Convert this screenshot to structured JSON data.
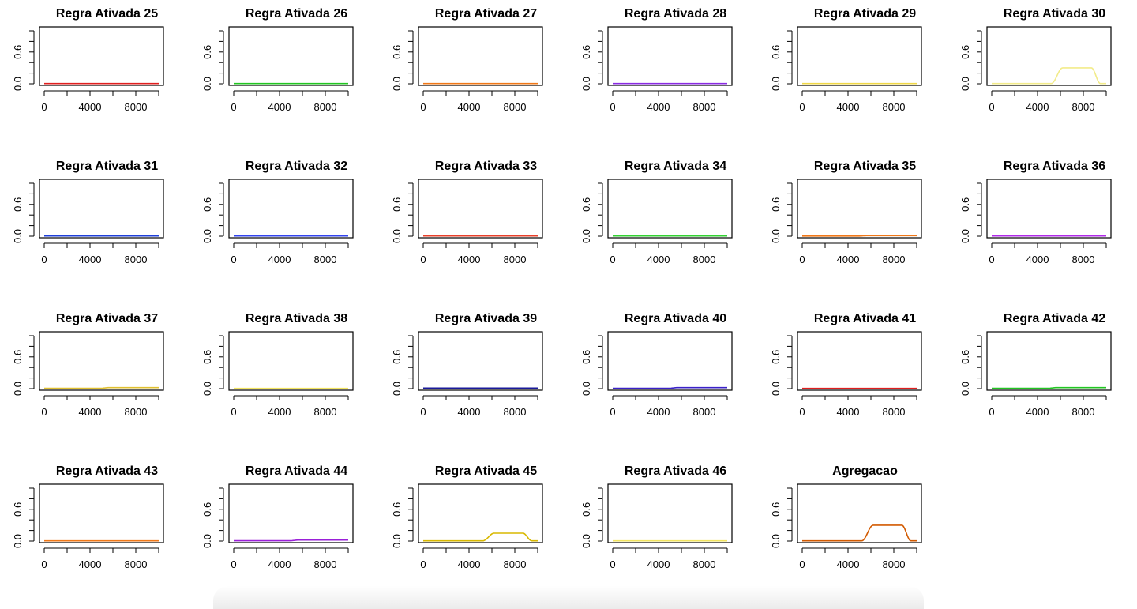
{
  "chart_data": [
    {
      "type": "line",
      "title": "Regra Ativada 25",
      "color": "#e01f1f",
      "profile": "flat",
      "level": 0.005,
      "xlim": [
        0,
        10000
      ],
      "ylim": [
        0,
        1
      ],
      "xticks": [
        "0",
        "4000",
        "8000"
      ],
      "yticks": [
        "0.0",
        "0.6"
      ]
    },
    {
      "type": "line",
      "title": "Regra Ativada 26",
      "color": "#22c522",
      "profile": "flat",
      "level": 0.005,
      "xlim": [
        0,
        10000
      ],
      "ylim": [
        0,
        1
      ],
      "xticks": [
        "0",
        "4000",
        "8000"
      ],
      "yticks": [
        "0.0",
        "0.6"
      ]
    },
    {
      "type": "line",
      "title": "Regra Ativada 27",
      "color": "#f07818",
      "profile": "flat",
      "level": 0.005,
      "xlim": [
        0,
        10000
      ],
      "ylim": [
        0,
        1
      ],
      "xticks": [
        "0",
        "4000",
        "8000"
      ],
      "yticks": [
        "0.0",
        "0.6"
      ]
    },
    {
      "type": "line",
      "title": "Regra Ativada 28",
      "color": "#8a2be2",
      "profile": "flat",
      "level": 0.005,
      "xlim": [
        0,
        10000
      ],
      "ylim": [
        0,
        1
      ],
      "xticks": [
        "0",
        "4000",
        "8000"
      ],
      "yticks": [
        "0.0",
        "0.6"
      ]
    },
    {
      "type": "line",
      "title": "Regra Ativada 29",
      "color": "#f0d848",
      "profile": "flat",
      "level": 0.005,
      "xlim": [
        0,
        10000
      ],
      "ylim": [
        0,
        1
      ],
      "xticks": [
        "0",
        "4000",
        "8000"
      ],
      "yticks": [
        "0.0",
        "0.6"
      ]
    },
    {
      "type": "line",
      "title": "Regra Ativada 30",
      "color": "#f2eb8a",
      "profile": "peak",
      "level": 0.3,
      "xlim": [
        0,
        10000
      ],
      "ylim": [
        0,
        1
      ],
      "xticks": [
        "0",
        "4000",
        "8000"
      ],
      "yticks": [
        "0.0",
        "0.6"
      ]
    },
    {
      "type": "line",
      "title": "Regra Ativada 31",
      "color": "#1f3fd8",
      "profile": "flat",
      "level": 0.005,
      "xlim": [
        0,
        10000
      ],
      "ylim": [
        0,
        1
      ],
      "xticks": [
        "0",
        "4000",
        "8000"
      ],
      "yticks": [
        "0.0",
        "0.6"
      ]
    },
    {
      "type": "line",
      "title": "Regra Ativada 32",
      "color": "#3344ee",
      "profile": "flat",
      "level": 0.005,
      "xlim": [
        0,
        10000
      ],
      "ylim": [
        0,
        1
      ],
      "xticks": [
        "0",
        "4000",
        "8000"
      ],
      "yticks": [
        "0.0",
        "0.6"
      ]
    },
    {
      "type": "line",
      "title": "Regra Ativada 33",
      "color": "#e8402a",
      "profile": "flat",
      "level": 0.005,
      "xlim": [
        0,
        10000
      ],
      "ylim": [
        0,
        1
      ],
      "xticks": [
        "0",
        "4000",
        "8000"
      ],
      "yticks": [
        "0.0",
        "0.6"
      ]
    },
    {
      "type": "line",
      "title": "Regra Ativada 34",
      "color": "#33d233",
      "profile": "flat",
      "level": 0.005,
      "xlim": [
        0,
        10000
      ],
      "ylim": [
        0,
        1
      ],
      "xticks": [
        "0",
        "4000",
        "8000"
      ],
      "yticks": [
        "0.0",
        "0.6"
      ]
    },
    {
      "type": "line",
      "title": "Regra Ativada 35",
      "color": "#f07818",
      "profile": "step",
      "level": 0.01,
      "xlim": [
        0,
        10000
      ],
      "ylim": [
        0,
        1
      ],
      "xticks": [
        "0",
        "4000",
        "8000"
      ],
      "yticks": [
        "0.0",
        "0.6"
      ]
    },
    {
      "type": "line",
      "title": "Regra Ativada 36",
      "color": "#b02be8",
      "profile": "flat",
      "level": 0.005,
      "xlim": [
        0,
        10000
      ],
      "ylim": [
        0,
        1
      ],
      "xticks": [
        "0",
        "4000",
        "8000"
      ],
      "yticks": [
        "0.0",
        "0.6"
      ]
    },
    {
      "type": "line",
      "title": "Regra Ativada 37",
      "color": "#e0c030",
      "profile": "step",
      "level": 0.02,
      "xlim": [
        0,
        10000
      ],
      "ylim": [
        0,
        1
      ],
      "xticks": [
        "0",
        "4000",
        "8000"
      ],
      "yticks": [
        "0.0",
        "0.6"
      ]
    },
    {
      "type": "line",
      "title": "Regra Ativada 38",
      "color": "#f2e460",
      "profile": "flat",
      "level": 0.005,
      "xlim": [
        0,
        10000
      ],
      "ylim": [
        0,
        1
      ],
      "xticks": [
        "0",
        "4000",
        "8000"
      ],
      "yticks": [
        "0.0",
        "0.6"
      ]
    },
    {
      "type": "line",
      "title": "Regra Ativada 39",
      "color": "#1a1a9a",
      "profile": "flat",
      "level": 0.01,
      "xlim": [
        0,
        10000
      ],
      "ylim": [
        0,
        1
      ],
      "xticks": [
        "0",
        "4000",
        "8000"
      ],
      "yticks": [
        "0.0",
        "0.6"
      ]
    },
    {
      "type": "line",
      "title": "Regra Ativada 40",
      "color": "#3a22c8",
      "profile": "step",
      "level": 0.02,
      "xlim": [
        0,
        10000
      ],
      "ylim": [
        0,
        1
      ],
      "xticks": [
        "0",
        "4000",
        "8000"
      ],
      "yticks": [
        "0.0",
        "0.6"
      ]
    },
    {
      "type": "line",
      "title": "Regra Ativada 41",
      "color": "#e01f1f",
      "profile": "flat",
      "level": 0.005,
      "xlim": [
        0,
        10000
      ],
      "ylim": [
        0,
        1
      ],
      "xticks": [
        "0",
        "4000",
        "8000"
      ],
      "yticks": [
        "0.0",
        "0.6"
      ]
    },
    {
      "type": "line",
      "title": "Regra Ativada 42",
      "color": "#22c522",
      "profile": "step",
      "level": 0.02,
      "xlim": [
        0,
        10000
      ],
      "ylim": [
        0,
        1
      ],
      "xticks": [
        "0",
        "4000",
        "8000"
      ],
      "yticks": [
        "0.0",
        "0.6"
      ]
    },
    {
      "type": "line",
      "title": "Regra Ativada 43",
      "color": "#f07818",
      "profile": "flat",
      "level": 0.005,
      "xlim": [
        0,
        10000
      ],
      "ylim": [
        0,
        1
      ],
      "xticks": [
        "0",
        "4000",
        "8000"
      ],
      "yticks": [
        "0.0",
        "0.6"
      ]
    },
    {
      "type": "line",
      "title": "Regra Ativada 44",
      "color": "#9a20d8",
      "profile": "step",
      "level": 0.02,
      "xlim": [
        0,
        10000
      ],
      "ylim": [
        0,
        1
      ],
      "xticks": [
        "0",
        "4000",
        "8000"
      ],
      "yticks": [
        "0.0",
        "0.6"
      ]
    },
    {
      "type": "line",
      "title": "Regra Ativada 45",
      "color": "#d8b800",
      "profile": "peak",
      "level": 0.15,
      "xlim": [
        0,
        10000
      ],
      "ylim": [
        0,
        1
      ],
      "xticks": [
        "0",
        "4000",
        "8000"
      ],
      "yticks": [
        "0.0",
        "0.6"
      ]
    },
    {
      "type": "line",
      "title": "Regra Ativada 46",
      "color": "#f2e460",
      "profile": "flat",
      "level": 0.005,
      "xlim": [
        0,
        10000
      ],
      "ylim": [
        0,
        1
      ],
      "xticks": [
        "0",
        "4000",
        "8000"
      ],
      "yticks": [
        "0.0",
        "0.6"
      ]
    },
    {
      "type": "line",
      "title": "Agregacao",
      "color": "#d25a00",
      "profile": "peak",
      "level": 0.3,
      "xlim": [
        0,
        10000
      ],
      "ylim": [
        0,
        1
      ],
      "xticks": [
        "0",
        "4000",
        "8000"
      ],
      "yticks": [
        "0.0",
        "0.6"
      ]
    }
  ]
}
